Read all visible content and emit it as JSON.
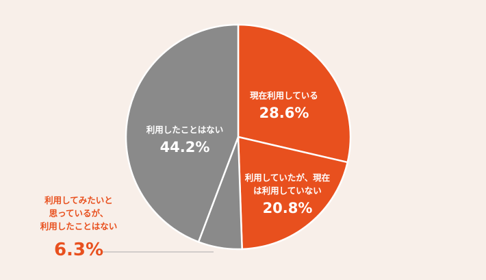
{
  "chart_data": {
    "type": "pie",
    "categories": [
      "現在利用している",
      "利用していたが、現在\nは利用していない",
      "利用してみたいと\n思っているが、\n利用したことはない",
      "利用したことはない"
    ],
    "values": [
      28.6,
      20.8,
      6.3,
      44.2
    ],
    "value_labels": [
      "28.6%",
      "20.8%",
      "6.3%",
      "44.2%"
    ],
    "colors": [
      "#e8501e",
      "#e8501e",
      "#8a8a8a",
      "#8a8a8a"
    ]
  }
}
